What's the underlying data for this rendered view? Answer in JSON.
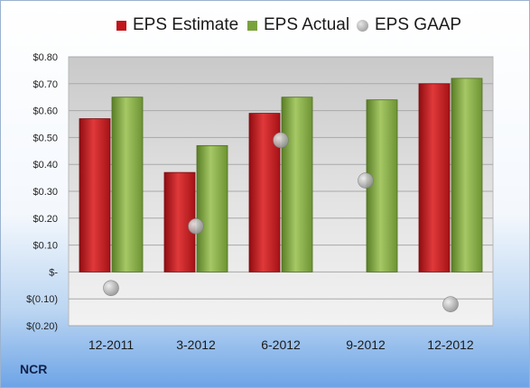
{
  "chart_data": {
    "type": "bar",
    "categories": [
      "12-2011",
      "3-2012",
      "6-2012",
      "9-2012",
      "12-2012"
    ],
    "series": [
      {
        "name": "EPS Estimate",
        "kind": "bar",
        "color": "#c0161c",
        "values": [
          0.57,
          0.37,
          0.59,
          null,
          0.7
        ]
      },
      {
        "name": "EPS Actual",
        "kind": "bar",
        "color": "#7aa23c",
        "values": [
          0.65,
          0.47,
          0.65,
          0.64,
          0.72
        ]
      },
      {
        "name": "EPS GAAP",
        "kind": "scatter",
        "color": "#a6a6a6",
        "values": [
          -0.06,
          0.17,
          0.49,
          0.34,
          -0.12
        ]
      }
    ],
    "yticks": [
      {
        "value": 0.8,
        "label": "$0.80"
      },
      {
        "value": 0.7,
        "label": "$0.70"
      },
      {
        "value": 0.6,
        "label": "$0.60"
      },
      {
        "value": 0.5,
        "label": "$0.50"
      },
      {
        "value": 0.4,
        "label": "$0.40"
      },
      {
        "value": 0.3,
        "label": "$0.30"
      },
      {
        "value": 0.2,
        "label": "$0.20"
      },
      {
        "value": 0.1,
        "label": "$0.10"
      },
      {
        "value": 0.0,
        "label": "$-"
      },
      {
        "value": -0.1,
        "label": "$(0.10)"
      },
      {
        "value": -0.2,
        "label": "$(0.20)"
      }
    ],
    "ylim": [
      -0.2,
      0.8
    ],
    "grid": true,
    "legend": "top"
  },
  "footer": {
    "brand": "NCR"
  }
}
